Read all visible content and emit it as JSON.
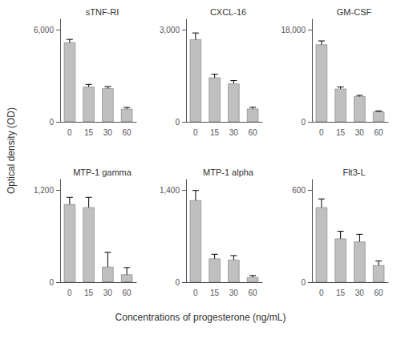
{
  "xlabel": "Concentrations of progesterone (ng/mL)",
  "ylabel": "Optical density (OD)",
  "chart_data": [
    {
      "type": "bar",
      "title": "sTNF-RI",
      "categories": [
        "0",
        "15",
        "30",
        "60"
      ],
      "values": [
        5200,
        2300,
        2200,
        850
      ],
      "errors": [
        200,
        150,
        110,
        90
      ],
      "color": "#c0c0c0",
      "ylim": [
        0,
        6720
      ],
      "yticks": [
        0,
        {
          "value": 6000,
          "label": "6,000"
        }
      ],
      "grid": false
    },
    {
      "type": "bar",
      "title": "CXCL-16",
      "categories": [
        "0",
        "15",
        "30",
        "60"
      ],
      "values": [
        2700,
        1450,
        1250,
        430
      ],
      "errors": [
        210,
        110,
        100,
        45
      ],
      "color": "#c0c0c0",
      "ylim": [
        0,
        3360
      ],
      "yticks": [
        0,
        {
          "value": 3000,
          "label": "3,000"
        }
      ],
      "grid": false
    },
    {
      "type": "bar",
      "title": "GM-CSF",
      "categories": [
        "0",
        "15",
        "30",
        "60"
      ],
      "values": [
        15200,
        6500,
        5000,
        2000
      ],
      "errors": [
        700,
        350,
        200,
        130
      ],
      "color": "#c0c0c0",
      "ylim": [
        0,
        20160
      ],
      "yticks": [
        0,
        {
          "value": 18000,
          "label": "18,000"
        }
      ],
      "grid": false
    },
    {
      "type": "bar",
      "title": "MTP-1 gamma",
      "categories": [
        "0",
        "15",
        "30",
        "60"
      ],
      "values": [
        1020,
        980,
        200,
        100
      ],
      "errors": [
        90,
        130,
        190,
        90
      ],
      "color": "#c0c0c0",
      "ylim": [
        0,
        1344
      ],
      "yticks": [
        0,
        {
          "value": 1200,
          "label": "1,200"
        }
      ],
      "grid": false
    },
    {
      "type": "bar",
      "title": "MTP-1 alpha",
      "categories": [
        "0",
        "15",
        "30",
        "60"
      ],
      "values": [
        1250,
        360,
        340,
        75
      ],
      "errors": [
        150,
        65,
        65,
        25
      ],
      "color": "#c0c0c0",
      "ylim": [
        0,
        1568
      ],
      "yticks": [
        0,
        {
          "value": 1400,
          "label": "1,400"
        }
      ],
      "grid": false
    },
    {
      "type": "bar",
      "title": "Flt3-L",
      "categories": [
        "0",
        "15",
        "30",
        "60"
      ],
      "values": [
        490,
        285,
        265,
        110
      ],
      "errors": [
        55,
        48,
        48,
        28
      ],
      "color": "#c0c0c0",
      "ylim": [
        0,
        672
      ],
      "yticks": [
        0,
        600
      ],
      "grid": false
    }
  ]
}
